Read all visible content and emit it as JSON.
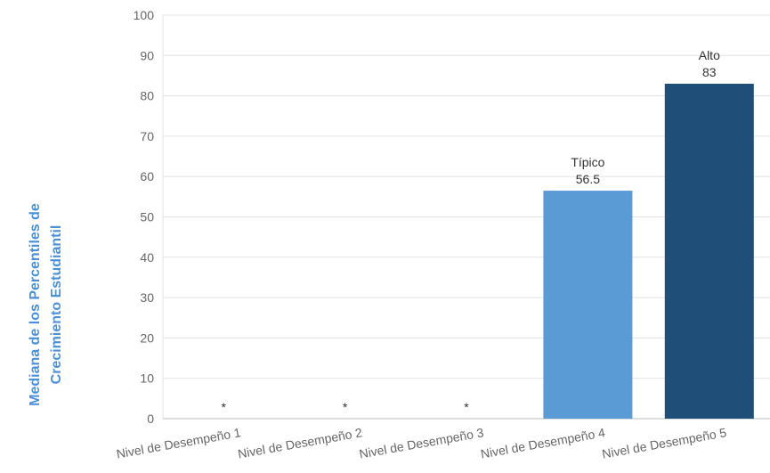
{
  "chart_data": {
    "type": "bar",
    "ylabel_lines": [
      "Mediana de los Percentiles de",
      "Crecimiento Estudiantil"
    ],
    "ylim": [
      0,
      100
    ],
    "yticks": [
      "0",
      "10",
      "20",
      "30",
      "40",
      "50",
      "60",
      "70",
      "80",
      "90",
      "100"
    ],
    "categories": [
      "Nivel de Desempeño 1",
      "Nivel de Desempeño 2",
      "Nivel de Desempeño 3",
      "Nivel de Desempeño 4",
      "Nivel de Desempeño 5"
    ],
    "values": [
      null,
      null,
      null,
      56.5,
      83
    ],
    "value_labels": [
      "*",
      "*",
      "*",
      "56.5",
      "83"
    ],
    "bar_tags": [
      "",
      "",
      "",
      "Típico",
      "Alto"
    ],
    "bar_colors": [
      "#5b9bd5",
      "#5b9bd5",
      "#5b9bd5",
      "#5b9bd5",
      "#1f4e79"
    ],
    "grid": true,
    "legend": "none"
  }
}
